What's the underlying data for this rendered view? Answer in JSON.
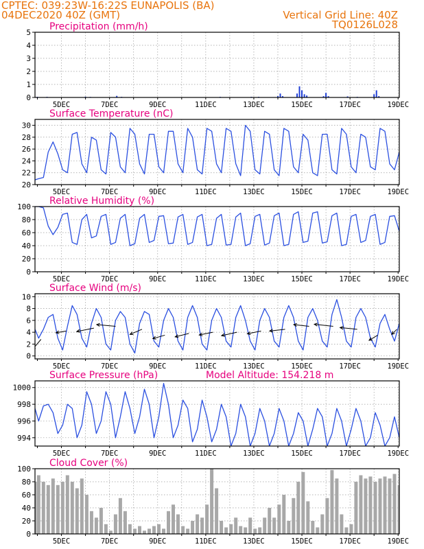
{
  "header": {
    "line1_left": "CPTEC:   039:23W-16:22S   EUNAPOLIS (BA)",
    "line2_left": "04DEC2020 40Z (GMT)",
    "line1_right": "Vertical Grid Line: 40Z",
    "line2_right": "TQ0126L028"
  },
  "x_tick_labels": [
    "5DEC",
    "7DEC",
    "9DEC",
    "11DEC",
    "13DEC",
    "15DEC",
    "17DEC",
    "19DEC"
  ],
  "chart_data": [
    {
      "id": "precip",
      "type": "bar",
      "title": "Precipitation (mm/h)",
      "ylim": [
        0,
        5
      ],
      "yticks": [
        0,
        1,
        2,
        3,
        4,
        5
      ],
      "color": "#1f3fd6",
      "x": [
        4.0,
        4.4,
        6.0,
        6.2,
        7.3,
        7.5,
        11.6,
        12.9,
        13.2,
        14.0,
        14.1,
        14.2,
        14.8,
        14.9,
        15.0,
        15.1,
        15.2,
        15.9,
        16.0,
        16.1,
        16.9,
        17.3,
        18.0,
        18.1,
        18.2
      ],
      "values": [
        0.05,
        0.05,
        0.06,
        0.04,
        0.12,
        0.05,
        0.05,
        0.05,
        0.05,
        0.1,
        0.3,
        0.1,
        0.3,
        0.85,
        0.55,
        0.25,
        0.15,
        0.1,
        0.35,
        0.1,
        0.08,
        0.05,
        0.25,
        0.55,
        0.1
      ]
    },
    {
      "id": "temp",
      "type": "line",
      "title": "Surface Temperature (nC)",
      "ylim": [
        20,
        31
      ],
      "yticks": [
        20,
        22,
        24,
        26,
        28,
        30
      ],
      "color": "#2a4fe0",
      "x": [
        3.9,
        4.05,
        4.25,
        4.45,
        4.65,
        4.85,
        5.05,
        5.25,
        5.45,
        5.65,
        5.85,
        6.05,
        6.25,
        6.45,
        6.65,
        6.85,
        7.05,
        7.25,
        7.45,
        7.65,
        7.85,
        8.05,
        8.25,
        8.45,
        8.65,
        8.85,
        9.05,
        9.25,
        9.45,
        9.65,
        9.85,
        10.05,
        10.25,
        10.45,
        10.65,
        10.85,
        11.05,
        11.25,
        11.45,
        11.65,
        11.85,
        12.05,
        12.25,
        12.45,
        12.65,
        12.85,
        13.05,
        13.25,
        13.45,
        13.65,
        13.85,
        14.05,
        14.25,
        14.45,
        14.65,
        14.85,
        15.05,
        15.25,
        15.45,
        15.65,
        15.85,
        16.05,
        16.25,
        16.45,
        16.65,
        16.85,
        17.05,
        17.25,
        17.45,
        17.65,
        17.85,
        18.05,
        18.25,
        18.45,
        18.65,
        18.85,
        19.05
      ],
      "values": [
        20.8,
        21.0,
        21.2,
        25.5,
        27.2,
        25.2,
        22.5,
        22.0,
        28.5,
        28.8,
        23.5,
        22.0,
        28.0,
        27.5,
        22.5,
        21.8,
        28.8,
        28.0,
        23.0,
        22.0,
        29.5,
        28.5,
        23.5,
        21.8,
        28.5,
        28.5,
        23.0,
        22.0,
        29.0,
        29.0,
        23.5,
        22.0,
        29.5,
        28.0,
        22.5,
        21.8,
        29.5,
        29.0,
        23.5,
        22.0,
        29.5,
        29.0,
        23.5,
        21.5,
        30.0,
        29.0,
        22.5,
        21.8,
        29.0,
        28.5,
        22.5,
        21.5,
        29.5,
        29.0,
        23.0,
        22.0,
        28.5,
        27.5,
        22.0,
        21.5,
        28.5,
        28.5,
        22.5,
        21.8,
        29.5,
        28.5,
        23.0,
        22.0,
        28.5,
        28.0,
        23.0,
        22.5,
        29.5,
        29.0,
        23.5,
        22.5,
        25.5
      ]
    },
    {
      "id": "rh",
      "type": "line",
      "title": "Relative Humidity (%)",
      "ylim": [
        0,
        100
      ],
      "yticks": [
        0,
        20,
        40,
        60,
        80,
        100
      ],
      "color": "#2a4fe0",
      "x": [
        3.9,
        4.05,
        4.25,
        4.45,
        4.65,
        4.85,
        5.05,
        5.25,
        5.45,
        5.65,
        5.85,
        6.05,
        6.25,
        6.45,
        6.65,
        6.85,
        7.05,
        7.25,
        7.45,
        7.65,
        7.85,
        8.05,
        8.25,
        8.45,
        8.65,
        8.85,
        9.05,
        9.25,
        9.45,
        9.65,
        9.85,
        10.05,
        10.25,
        10.45,
        10.65,
        10.85,
        11.05,
        11.25,
        11.45,
        11.65,
        11.85,
        12.05,
        12.25,
        12.45,
        12.65,
        12.85,
        13.05,
        13.25,
        13.45,
        13.65,
        13.85,
        14.05,
        14.25,
        14.45,
        14.65,
        14.85,
        15.05,
        15.25,
        15.45,
        15.65,
        15.85,
        16.05,
        16.25,
        16.45,
        16.65,
        16.85,
        17.05,
        17.25,
        17.45,
        17.65,
        17.85,
        18.05,
        18.25,
        18.45,
        18.65,
        18.85,
        19.05
      ],
      "values": [
        100,
        100,
        98,
        70,
        57,
        68,
        88,
        90,
        45,
        42,
        80,
        88,
        52,
        55,
        85,
        88,
        42,
        45,
        82,
        88,
        40,
        43,
        82,
        88,
        45,
        48,
        85,
        86,
        43,
        44,
        84,
        88,
        42,
        45,
        84,
        88,
        40,
        42,
        82,
        88,
        41,
        42,
        84,
        90,
        40,
        43,
        85,
        88,
        41,
        44,
        86,
        90,
        40,
        42,
        88,
        92,
        45,
        47,
        90,
        92,
        44,
        46,
        86,
        90,
        40,
        42,
        85,
        88,
        45,
        48,
        85,
        88,
        42,
        45,
        85,
        86,
        62
      ]
    },
    {
      "id": "wind",
      "type": "line",
      "title": "Surface Wind (m/s)",
      "ylim": [
        -0.5,
        10.5
      ],
      "yticks": [
        0,
        2,
        4,
        6,
        8,
        10
      ],
      "color": "#2a4fe0",
      "x": [
        3.9,
        4.05,
        4.25,
        4.45,
        4.65,
        4.85,
        5.05,
        5.25,
        5.45,
        5.65,
        5.85,
        6.05,
        6.25,
        6.45,
        6.65,
        6.85,
        7.05,
        7.25,
        7.45,
        7.65,
        7.85,
        8.05,
        8.25,
        8.45,
        8.65,
        8.85,
        9.05,
        9.25,
        9.45,
        9.65,
        9.85,
        10.05,
        10.25,
        10.45,
        10.65,
        10.85,
        11.05,
        11.25,
        11.45,
        11.65,
        11.85,
        12.05,
        12.25,
        12.45,
        12.65,
        12.85,
        13.05,
        13.25,
        13.45,
        13.65,
        13.85,
        14.05,
        14.25,
        14.45,
        14.65,
        14.85,
        15.05,
        15.25,
        15.45,
        15.65,
        15.85,
        16.05,
        16.25,
        16.45,
        16.65,
        16.85,
        17.05,
        17.25,
        17.45,
        17.65,
        17.85,
        18.05,
        18.25,
        18.45,
        18.65,
        18.85,
        19.05
      ],
      "values": [
        4.5,
        3.0,
        4.5,
        6.5,
        7.0,
        3.0,
        1.0,
        5.0,
        8.5,
        7.0,
        3.0,
        1.5,
        5.5,
        8.0,
        6.5,
        2.0,
        1.0,
        6.0,
        7.5,
        6.5,
        2.0,
        0.5,
        5.5,
        7.5,
        7.0,
        2.5,
        1.5,
        6.0,
        8.0,
        6.5,
        2.5,
        1.0,
        6.5,
        8.5,
        6.5,
        2.0,
        1.0,
        6.0,
        8.0,
        6.5,
        2.5,
        1.5,
        6.5,
        8.5,
        6.0,
        2.5,
        1.0,
        6.0,
        8.0,
        6.5,
        2.5,
        1.5,
        6.5,
        8.5,
        6.5,
        2.5,
        1.0,
        6.5,
        8.0,
        6.0,
        2.5,
        1.5,
        7.0,
        9.5,
        6.5,
        2.5,
        1.5,
        6.5,
        8.0,
        6.5,
        3.0,
        1.5,
        5.5,
        7.0,
        4.5,
        2.5,
        5.5
      ],
      "vectors": {
        "x": [
          4.15,
          5.2,
          6.35,
          7.25,
          8.35,
          9.3,
          10.3,
          11.3,
          12.3,
          13.3,
          14.3,
          15.3,
          16.3,
          17.3,
          18.15,
          18.95
        ],
        "y": [
          2.8,
          4.2,
          4.7,
          5.0,
          4.5,
          3.5,
          3.8,
          4.0,
          4.0,
          4.2,
          4.5,
          5.0,
          5.0,
          4.5,
          3.5,
          4.5
        ],
        "u": [
          -2.5,
          -3.0,
          -5.0,
          -5.5,
          -3.5,
          -3.5,
          -4.0,
          -4.0,
          -4.5,
          -4.0,
          -4.5,
          -4.5,
          -5.5,
          -5.0,
          -2.5,
          -1.5
        ],
        "v": [
          -3.0,
          -0.5,
          -1.0,
          0.5,
          -1.5,
          -1.0,
          -1.0,
          -0.8,
          -1.0,
          -0.8,
          -0.5,
          0.5,
          0.6,
          0.5,
          -1.5,
          -1.5
        ]
      }
    },
    {
      "id": "pressure",
      "type": "line",
      "title": "Surface Pressure (hPa)",
      "subtitle": "Model Altitude: 154.218 m",
      "ylim": [
        993,
        1000.8
      ],
      "yticks": [
        994,
        996,
        998,
        1000
      ],
      "color": "#2a4fe0",
      "x": [
        3.9,
        4.05,
        4.25,
        4.45,
        4.65,
        4.85,
        5.05,
        5.25,
        5.45,
        5.65,
        5.85,
        6.05,
        6.25,
        6.45,
        6.65,
        6.85,
        7.05,
        7.25,
        7.45,
        7.65,
        7.85,
        8.05,
        8.25,
        8.45,
        8.65,
        8.85,
        9.05,
        9.25,
        9.45,
        9.65,
        9.85,
        10.05,
        10.25,
        10.45,
        10.65,
        10.85,
        11.05,
        11.25,
        11.45,
        11.65,
        11.85,
        12.05,
        12.25,
        12.45,
        12.65,
        12.85,
        13.05,
        13.25,
        13.45,
        13.65,
        13.85,
        14.05,
        14.25,
        14.45,
        14.65,
        14.85,
        15.05,
        15.25,
        15.45,
        15.65,
        15.85,
        16.05,
        16.25,
        16.45,
        16.65,
        16.85,
        17.05,
        17.25,
        17.45,
        17.65,
        17.85,
        18.05,
        18.25,
        18.45,
        18.65,
        18.85,
        19.05
      ],
      "values": [
        997.5,
        996.0,
        997.8,
        998.0,
        997.0,
        994.5,
        995.5,
        998.0,
        997.5,
        994.0,
        995.5,
        999.5,
        998.0,
        994.5,
        996.0,
        999.5,
        998.0,
        994.0,
        996.5,
        999.5,
        997.5,
        994.5,
        996.5,
        999.8,
        998.0,
        994.0,
        996.5,
        1000.5,
        998.0,
        994.0,
        995.5,
        998.5,
        997.5,
        993.5,
        995.0,
        998.5,
        996.5,
        993.5,
        995.0,
        998.0,
        996.5,
        993.0,
        994.5,
        998.0,
        996.5,
        993.0,
        994.5,
        997.5,
        996.0,
        993.0,
        994.5,
        997.5,
        996.0,
        993.0,
        994.5,
        997.0,
        996.0,
        993.0,
        995.0,
        997.5,
        996.5,
        993.0,
        994.5,
        997.5,
        996.0,
        993.0,
        995.0,
        997.5,
        996.0,
        993.0,
        994.0,
        997.0,
        995.5,
        993.0,
        994.0,
        996.5,
        994.0
      ]
    },
    {
      "id": "cloud",
      "type": "bar",
      "title": "Cloud Cover (%)",
      "ylim": [
        0,
        100
      ],
      "yticks": [
        0,
        20,
        40,
        60,
        80,
        100
      ],
      "color": "#a8a8a8",
      "x": [
        3.9,
        4.05,
        4.25,
        4.45,
        4.65,
        4.85,
        5.05,
        5.25,
        5.45,
        5.65,
        5.85,
        6.05,
        6.25,
        6.45,
        6.65,
        6.85,
        7.05,
        7.25,
        7.45,
        7.65,
        7.85,
        8.05,
        8.25,
        8.45,
        8.65,
        8.85,
        9.05,
        9.25,
        9.45,
        9.65,
        9.85,
        10.05,
        10.25,
        10.45,
        10.65,
        10.85,
        11.05,
        11.25,
        11.45,
        11.65,
        11.85,
        12.05,
        12.25,
        12.45,
        12.65,
        12.85,
        13.05,
        13.25,
        13.45,
        13.65,
        13.85,
        14.05,
        14.25,
        14.45,
        14.65,
        14.85,
        15.05,
        15.25,
        15.45,
        15.65,
        15.85,
        16.05,
        16.25,
        16.45,
        16.65,
        16.85,
        17.05,
        17.25,
        17.45,
        17.65,
        17.85,
        18.05,
        18.25,
        18.45,
        18.65,
        18.85,
        19.05
      ],
      "values": [
        80,
        90,
        80,
        75,
        85,
        75,
        80,
        90,
        80,
        70,
        85,
        60,
        35,
        25,
        40,
        15,
        5,
        30,
        55,
        35,
        15,
        8,
        12,
        5,
        8,
        12,
        15,
        8,
        35,
        45,
        30,
        12,
        8,
        20,
        30,
        25,
        45,
        100,
        70,
        20,
        10,
        15,
        25,
        12,
        10,
        25,
        8,
        10,
        25,
        40,
        25,
        45,
        60,
        20,
        55,
        80,
        95,
        50,
        20,
        10,
        30,
        55,
        98,
        85,
        30,
        10,
        15,
        80,
        90,
        85,
        88,
        80,
        85,
        88,
        85,
        92,
        75
      ]
    }
  ]
}
